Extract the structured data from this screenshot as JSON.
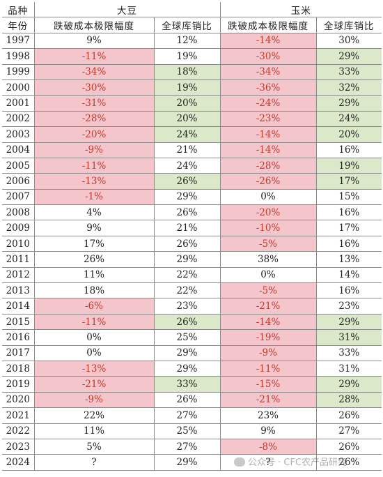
{
  "header": {
    "row1_corner": "品种",
    "row1_soy": "大豆",
    "row1_corn": "玉米",
    "row2_corner": "年份",
    "soy_drop": "跌破成本极限幅度",
    "soy_ratio": "全球库销比",
    "corn_drop": "跌破成本极限幅度",
    "corn_ratio": "全球库销比"
  },
  "colors": {
    "red_fill": "#f4c5ca",
    "red_text": "#c0392b",
    "green_fill": "#dbe8c9"
  },
  "rows": [
    {
      "year": "1997",
      "soy_drop": "9%",
      "soy_ratio": "12%",
      "corn_drop": "-14%",
      "corn_ratio": "30%",
      "hl": [
        "",
        "",
        "r",
        ""
      ]
    },
    {
      "year": "1998",
      "soy_drop": "-11%",
      "soy_ratio": "19%",
      "corn_drop": "-30%",
      "corn_ratio": "29%",
      "hl": [
        "r",
        "",
        "r",
        "g"
      ]
    },
    {
      "year": "1999",
      "soy_drop": "-34%",
      "soy_ratio": "18%",
      "corn_drop": "-34%",
      "corn_ratio": "33%",
      "hl": [
        "r",
        "g",
        "r",
        "g"
      ]
    },
    {
      "year": "2000",
      "soy_drop": "-30%",
      "soy_ratio": "19%",
      "corn_drop": "-36%",
      "corn_ratio": "32%",
      "hl": [
        "r",
        "g",
        "r",
        "g"
      ]
    },
    {
      "year": "2001",
      "soy_drop": "-31%",
      "soy_ratio": "20%",
      "corn_drop": "-24%",
      "corn_ratio": "29%",
      "hl": [
        "r",
        "g",
        "r",
        "g"
      ]
    },
    {
      "year": "2002",
      "soy_drop": "-28%",
      "soy_ratio": "20%",
      "corn_drop": "-23%",
      "corn_ratio": "24%",
      "hl": [
        "r",
        "g",
        "r",
        "g"
      ]
    },
    {
      "year": "2003",
      "soy_drop": "-20%",
      "soy_ratio": "24%",
      "corn_drop": "-14%",
      "corn_ratio": "20%",
      "hl": [
        "r",
        "g",
        "r",
        "g"
      ]
    },
    {
      "year": "2004",
      "soy_drop": "-9%",
      "soy_ratio": "21%",
      "corn_drop": "-14%",
      "corn_ratio": "16%",
      "hl": [
        "r",
        "",
        "r",
        ""
      ]
    },
    {
      "year": "2005",
      "soy_drop": "-11%",
      "soy_ratio": "24%",
      "corn_drop": "-28%",
      "corn_ratio": "19%",
      "hl": [
        "r",
        "",
        "r",
        "g"
      ]
    },
    {
      "year": "2006",
      "soy_drop": "-13%",
      "soy_ratio": "26%",
      "corn_drop": "-26%",
      "corn_ratio": "17%",
      "hl": [
        "r",
        "g",
        "r",
        "g"
      ]
    },
    {
      "year": "2007",
      "soy_drop": "-1%",
      "soy_ratio": "29%",
      "corn_drop": "0%",
      "corn_ratio": "15%",
      "hl": [
        "r",
        "",
        "",
        ""
      ]
    },
    {
      "year": "2008",
      "soy_drop": "4%",
      "soy_ratio": "26%",
      "corn_drop": "-20%",
      "corn_ratio": "16%",
      "hl": [
        "",
        "",
        "r",
        ""
      ]
    },
    {
      "year": "2009",
      "soy_drop": "9%",
      "soy_ratio": "21%",
      "corn_drop": "-10%",
      "corn_ratio": "17%",
      "hl": [
        "",
        "",
        "r",
        ""
      ]
    },
    {
      "year": "2010",
      "soy_drop": "17%",
      "soy_ratio": "26%",
      "corn_drop": "-5%",
      "corn_ratio": "16%",
      "hl": [
        "",
        "",
        "r",
        ""
      ]
    },
    {
      "year": "2011",
      "soy_drop": "26%",
      "soy_ratio": "29%",
      "corn_drop": "38%",
      "corn_ratio": "13%",
      "hl": [
        "",
        "",
        "",
        ""
      ]
    },
    {
      "year": "2012",
      "soy_drop": "11%",
      "soy_ratio": "22%",
      "corn_drop": "0%",
      "corn_ratio": "14%",
      "hl": [
        "",
        "",
        "",
        ""
      ]
    },
    {
      "year": "2013",
      "soy_drop": "18%",
      "soy_ratio": "22%",
      "corn_drop": "-5%",
      "corn_ratio": "16%",
      "hl": [
        "",
        "",
        "r",
        ""
      ]
    },
    {
      "year": "2014",
      "soy_drop": "-6%",
      "soy_ratio": "23%",
      "corn_drop": "-21%",
      "corn_ratio": "23%",
      "hl": [
        "r",
        "",
        "r",
        ""
      ]
    },
    {
      "year": "2015",
      "soy_drop": "-11%",
      "soy_ratio": "26%",
      "corn_drop": "-14%",
      "corn_ratio": "29%",
      "hl": [
        "r",
        "g",
        "r",
        "g"
      ]
    },
    {
      "year": "2016",
      "soy_drop": "0%",
      "soy_ratio": "25%",
      "corn_drop": "-19%",
      "corn_ratio": "31%",
      "hl": [
        "",
        "",
        "r",
        "g"
      ]
    },
    {
      "year": "2017",
      "soy_drop": "0%",
      "soy_ratio": "29%",
      "corn_drop": "-9%",
      "corn_ratio": "33%",
      "hl": [
        "",
        "",
        "r",
        ""
      ]
    },
    {
      "year": "2018",
      "soy_drop": "-13%",
      "soy_ratio": "29%",
      "corn_drop": "-11%",
      "corn_ratio": "31%",
      "hl": [
        "r",
        "",
        "r",
        ""
      ]
    },
    {
      "year": "2019",
      "soy_drop": "-21%",
      "soy_ratio": "33%",
      "corn_drop": "-15%",
      "corn_ratio": "29%",
      "hl": [
        "r",
        "g",
        "r",
        "g"
      ]
    },
    {
      "year": "2020",
      "soy_drop": "-9%",
      "soy_ratio": "26%",
      "corn_drop": "-21%",
      "corn_ratio": "28%",
      "hl": [
        "r",
        "",
        "r",
        "g"
      ]
    },
    {
      "year": "2021",
      "soy_drop": "22%",
      "soy_ratio": "27%",
      "corn_drop": "23%",
      "corn_ratio": "26%",
      "hl": [
        "",
        "",
        "",
        ""
      ]
    },
    {
      "year": "2022",
      "soy_drop": "11%",
      "soy_ratio": "25%",
      "corn_drop": "9%",
      "corn_ratio": "27%",
      "hl": [
        "",
        "",
        "",
        ""
      ]
    },
    {
      "year": "2023",
      "soy_drop": "5%",
      "soy_ratio": "27%",
      "corn_drop": "-8%",
      "corn_ratio": "26%",
      "hl": [
        "",
        "",
        "r",
        ""
      ]
    },
    {
      "year": "2024",
      "soy_drop": "?",
      "soy_ratio": "29%",
      "corn_drop": "?",
      "corn_ratio": "26%",
      "hl": [
        "",
        "",
        "",
        ""
      ]
    }
  ],
  "watermark": {
    "icon": "wechat-icon",
    "text": "公众号 · CFC农产品研究"
  }
}
